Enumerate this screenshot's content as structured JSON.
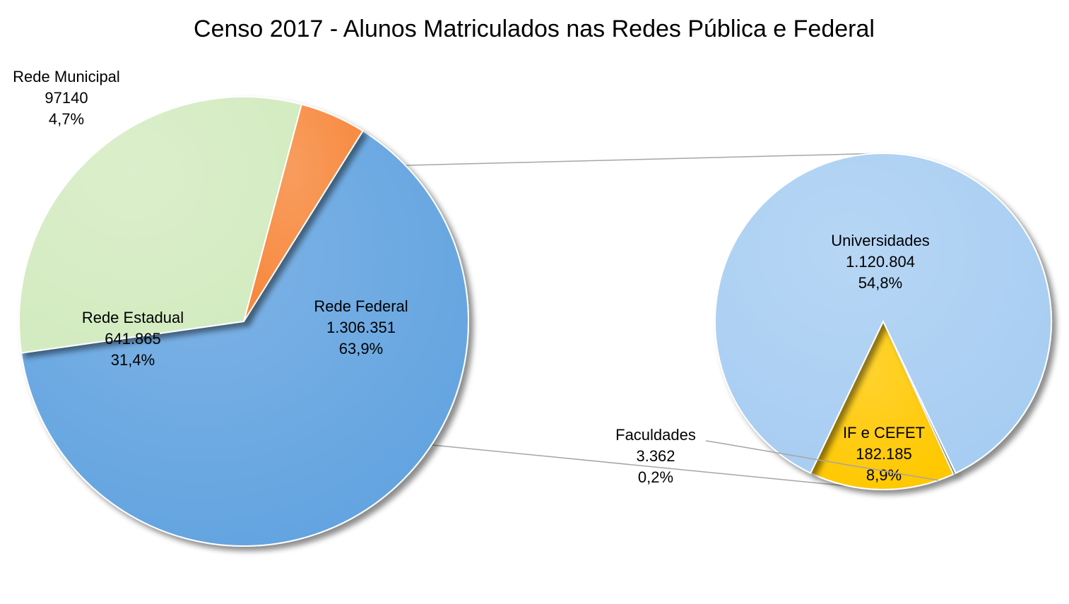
{
  "chart_data": {
    "type": "pie",
    "subtype": "pie-of-pie",
    "title": "Censo 2017 - Alunos Matriculados nas Redes Pública e Federal",
    "legend": "none",
    "main_pie": {
      "slices": [
        {
          "name": "Rede Federal",
          "value_label": "1.306.351",
          "value": 1306351,
          "percent_label": "63,9%",
          "percent": 63.9,
          "color": "#62A3E0"
        },
        {
          "name": "Rede Estadual",
          "value_label": "641.865",
          "value": 641865,
          "percent_label": "31,4%",
          "percent": 31.4,
          "color": "#D3EBC0"
        },
        {
          "name": "Rede Municipal",
          "value_label": "97140",
          "value": 97140,
          "percent_label": "4,7%",
          "percent": 4.7,
          "color": "#F7873A"
        }
      ]
    },
    "secondary_pie": {
      "breakdown_of": "Rede Federal",
      "slices": [
        {
          "name": "Universidades",
          "value_label": "1.120.804",
          "value": 1120804,
          "percent_label": "54,8%",
          "percent": 54.8,
          "color": "#A7CDF2"
        },
        {
          "name": "IF e CEFET",
          "value_label": "182.185",
          "value": 182185,
          "percent_label": "8,9%",
          "percent": 8.9,
          "color": "#FFC800"
        },
        {
          "name": "Faculdades",
          "value_label": "3.362",
          "value": 3362,
          "percent_label": "0,2%",
          "percent": 0.2,
          "color": "#C9C9C9"
        }
      ]
    }
  }
}
